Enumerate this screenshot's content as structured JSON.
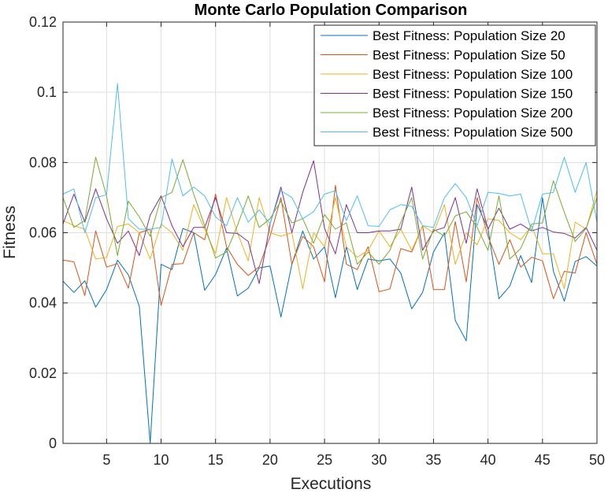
{
  "chart_data": {
    "type": "line",
    "title": "Monte Carlo Population Comparison",
    "xlabel": "Executions",
    "ylabel": "Fitness",
    "xlim": [
      1,
      50
    ],
    "ylim": [
      0,
      0.12
    ],
    "x_ticks": [
      5,
      10,
      15,
      20,
      25,
      30,
      35,
      40,
      45,
      50
    ],
    "y_ticks": [
      0,
      0.02,
      0.04,
      0.06,
      0.08,
      0.1,
      0.12
    ],
    "y_tick_labels": [
      "0",
      "0.02",
      "0.04",
      "0.06",
      "0.08",
      "0.1",
      "0.12"
    ],
    "grid": true,
    "legend_position": "top-right",
    "x": [
      1,
      2,
      3,
      4,
      5,
      6,
      7,
      8,
      9,
      10,
      11,
      12,
      13,
      14,
      15,
      16,
      17,
      18,
      19,
      20,
      21,
      22,
      23,
      24,
      25,
      26,
      27,
      28,
      29,
      30,
      31,
      32,
      33,
      34,
      35,
      36,
      37,
      38,
      39,
      40,
      41,
      42,
      43,
      44,
      45,
      46,
      47,
      48,
      49,
      50
    ],
    "series": [
      {
        "name": "Best Fitness: Population Size 20",
        "color": "#0072BD",
        "values": [
          0.0462,
          0.043,
          0.0463,
          0.0388,
          0.0438,
          0.0522,
          0.048,
          0.039,
          0.0,
          0.051,
          0.0495,
          0.0612,
          0.06,
          0.0436,
          0.0481,
          0.0556,
          0.042,
          0.0442,
          0.05,
          0.0505,
          0.036,
          0.051,
          0.0605,
          0.0525,
          0.056,
          0.0415,
          0.056,
          0.0438,
          0.0525,
          0.052,
          0.0525,
          0.0485,
          0.0383,
          0.043,
          0.0545,
          0.06,
          0.035,
          0.0292,
          0.068,
          0.0612,
          0.0412,
          0.0448,
          0.0535,
          0.0458,
          0.07,
          0.049,
          0.0405,
          0.0518,
          0.0532,
          0.0505
        ]
      },
      {
        "name": "Best Fitness: Population Size 50",
        "color": "#D95319",
        "values": [
          0.0522,
          0.0517,
          0.0421,
          0.0605,
          0.0502,
          0.0512,
          0.0442,
          0.06,
          0.061,
          0.0393,
          0.051,
          0.0512,
          0.06,
          0.058,
          0.071,
          0.056,
          0.051,
          0.0478,
          0.0503,
          0.059,
          0.07,
          0.051,
          0.059,
          0.056,
          0.046,
          0.0735,
          0.051,
          0.0495,
          0.056,
          0.0432,
          0.044,
          0.0555,
          0.0545,
          0.062,
          0.0438,
          0.0438,
          0.0632,
          0.046,
          0.07,
          0.059,
          0.051,
          0.058,
          0.0502,
          0.053,
          0.052,
          0.0412,
          0.049,
          0.0485,
          0.06,
          0.051
        ]
      },
      {
        "name": "Best Fitness: Population Size 100",
        "color": "#EDB120",
        "values": [
          0.0635,
          0.062,
          0.061,
          0.0525,
          0.053,
          0.0618,
          0.0625,
          0.06,
          0.0525,
          0.0625,
          0.06,
          0.055,
          0.068,
          0.061,
          0.054,
          0.07,
          0.06,
          0.052,
          0.07,
          0.06,
          0.059,
          0.06,
          0.044,
          0.06,
          0.056,
          0.07,
          0.056,
          0.053,
          0.055,
          0.0605,
          0.056,
          0.061,
          0.055,
          0.062,
          0.06,
          0.068,
          0.051,
          0.06,
          0.0565,
          0.064,
          0.0635,
          0.06,
          0.058,
          0.062,
          0.054,
          0.054,
          0.044,
          0.063,
          0.061,
          0.072
        ]
      },
      {
        "name": "Best Fitness: Population Size 150",
        "color": "#7E2F8E",
        "values": [
          0.0625,
          0.071,
          0.063,
          0.0725,
          0.064,
          0.057,
          0.0605,
          0.0535,
          0.065,
          0.0705,
          0.062,
          0.056,
          0.0615,
          0.0615,
          0.07,
          0.06,
          0.0598,
          0.0575,
          0.0455,
          0.0625,
          0.073,
          0.06,
          0.0715,
          0.0805,
          0.0612,
          0.054,
          0.068,
          0.06,
          0.06,
          0.0605,
          0.0605,
          0.061,
          0.073,
          0.055,
          0.0605,
          0.0615,
          0.07,
          0.057,
          0.0725,
          0.061,
          0.067,
          0.061,
          0.0625,
          0.0605,
          0.0615,
          0.0602,
          0.0598,
          0.0585,
          0.0615,
          0.055
        ]
      },
      {
        "name": "Best Fitness: Population Size 200",
        "color": "#77AC30",
        "values": [
          0.07,
          0.0615,
          0.0635,
          0.0815,
          0.0705,
          0.0535,
          0.069,
          0.0645,
          0.059,
          0.07,
          0.0715,
          0.0808,
          0.071,
          0.062,
          0.0528,
          0.0545,
          0.062,
          0.0705,
          0.0615,
          0.064,
          0.069,
          0.0628,
          0.064,
          0.057,
          0.0652,
          0.061,
          0.0628,
          0.051,
          0.0545,
          0.051,
          0.055,
          0.063,
          0.07,
          0.0525,
          0.061,
          0.059,
          0.0648,
          0.066,
          0.0615,
          0.055,
          0.0705,
          0.0525,
          0.0555,
          0.0625,
          0.0628,
          0.0748,
          0.0658,
          0.0575,
          0.0612,
          0.07
        ]
      },
      {
        "name": "Best Fitness: Population Size 500",
        "color": "#4DBEEE",
        "values": [
          0.071,
          0.0725,
          0.06,
          0.07,
          0.0708,
          0.1025,
          0.064,
          0.061,
          0.061,
          0.0615,
          0.081,
          0.0705,
          0.073,
          0.0705,
          0.0645,
          0.062,
          0.07,
          0.063,
          0.0665,
          0.0625,
          0.072,
          0.07,
          0.064,
          0.066,
          0.071,
          0.072,
          0.0635,
          0.0705,
          0.062,
          0.0618,
          0.0665,
          0.068,
          0.0675,
          0.062,
          0.0615,
          0.07,
          0.074,
          0.07,
          0.062,
          0.0715,
          0.0712,
          0.0705,
          0.071,
          0.0605,
          0.071,
          0.0715,
          0.0815,
          0.0715,
          0.08,
          0.063
        ]
      }
    ]
  }
}
